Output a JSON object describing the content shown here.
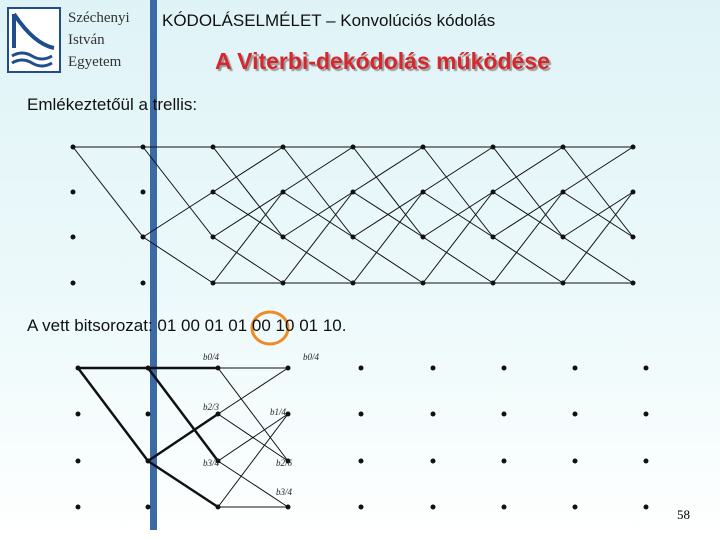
{
  "header": {
    "university": [
      "Széchenyi",
      "István",
      "Egyetem"
    ],
    "course": "KÓDOLÁSELMÉLET – Konvolúciós kódolás"
  },
  "title": "A Viterbi-dekódolás működése",
  "body": {
    "trellis_intro": "Emlékeztetőül a trellis:",
    "received": "A vett bitsorozat: 01 00 01 01 00 10 01 10."
  },
  "trellis_labels": [
    "b0/4",
    "b0/4",
    "b2/3",
    "b1/4",
    "b3/4",
    "b2/6",
    "b3/4"
  ],
  "page_number": "58"
}
